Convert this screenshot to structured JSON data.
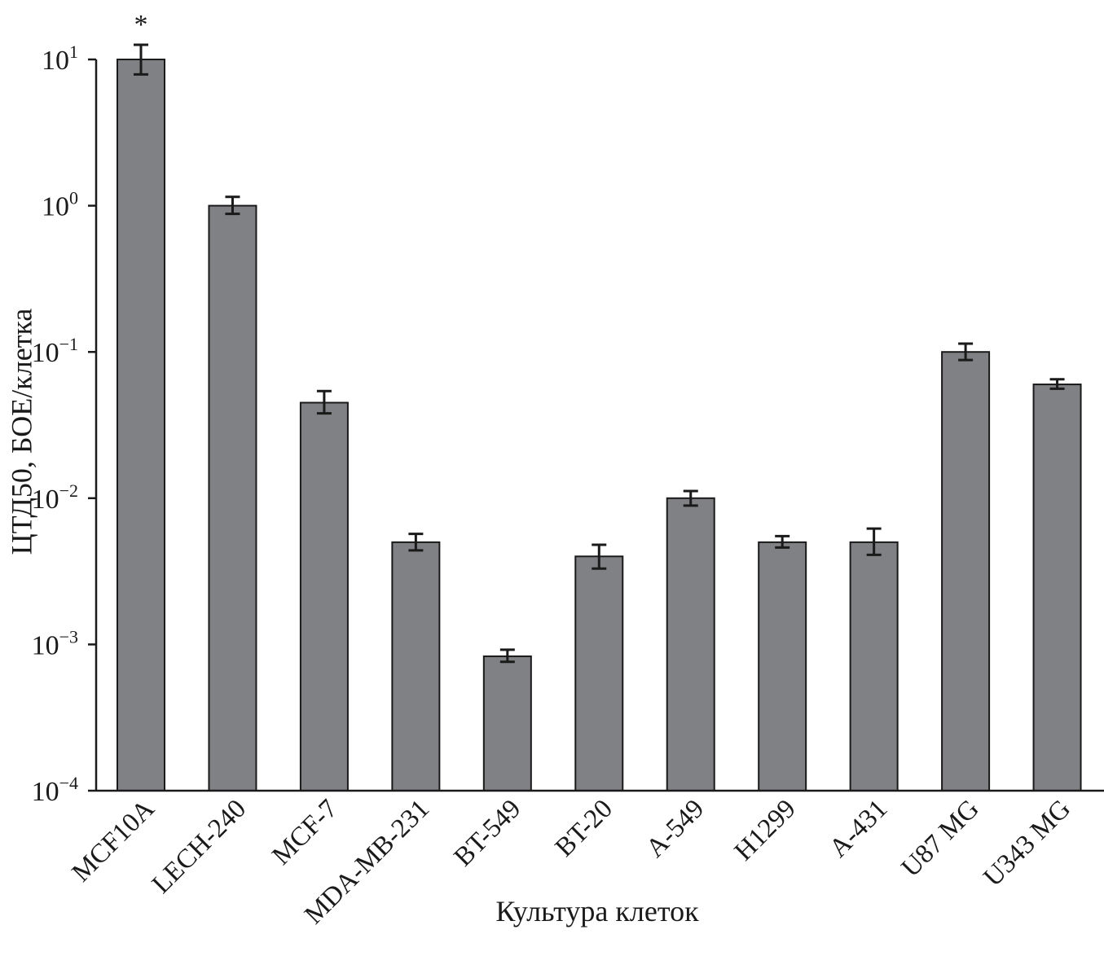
{
  "chart_data": {
    "type": "bar",
    "xlabel": "Культура клеток",
    "ylabel": "ЦТД50, БОЕ/клетка",
    "yscale": "log",
    "ylim": [
      0.0001,
      10
    ],
    "yticks": [
      {
        "base": "10",
        "exp": "1",
        "value": 10
      },
      {
        "base": "10",
        "exp": "0",
        "value": 1
      },
      {
        "base": "10",
        "exp": "−1",
        "value": 0.1
      },
      {
        "base": "10",
        "exp": "−2",
        "value": 0.01
      },
      {
        "base": "10",
        "exp": "−3",
        "value": 0.001
      },
      {
        "base": "10",
        "exp": "−4",
        "value": 0.0001
      }
    ],
    "categories": [
      "MCF10A",
      "LECH-240",
      "MCF-7",
      "MDA-MB-231",
      "BT-549",
      "BT-20",
      "A-549",
      "H1299",
      "A-431",
      "U87 MG",
      "U343 MG"
    ],
    "values": [
      10,
      1,
      0.045,
      0.005,
      0.00083,
      0.004,
      0.01,
      0.005,
      0.005,
      0.1,
      0.06
    ],
    "error_high": [
      12.6,
      1.15,
      0.054,
      0.0057,
      0.00092,
      0.0048,
      0.0112,
      0.0055,
      0.0062,
      0.114,
      0.065
    ],
    "error_low": [
      7.9,
      0.88,
      0.038,
      0.0044,
      0.00076,
      0.0033,
      0.0089,
      0.0046,
      0.0041,
      0.088,
      0.056
    ],
    "annotations": [
      {
        "category": "MCF10A",
        "text": "*"
      }
    ],
    "bar_color": "#808184",
    "grid": false
  }
}
